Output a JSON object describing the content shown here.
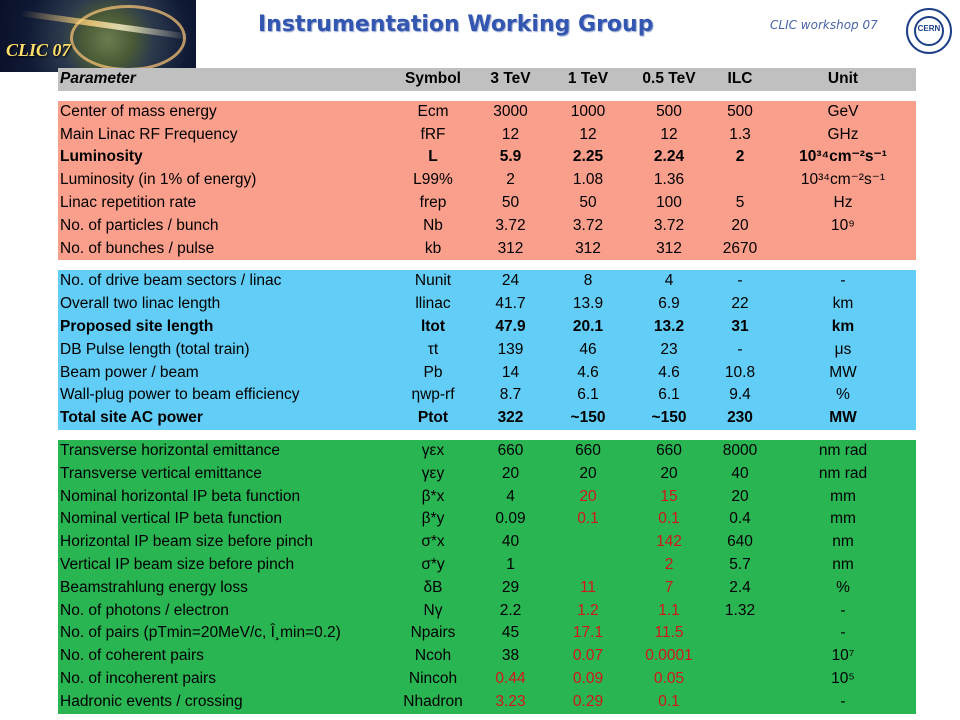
{
  "header": {
    "logo_text": "CLIC 07",
    "title": "Instrumentation Working Group",
    "workshop": "CLIC workshop 07",
    "cern_logo": "CERN"
  },
  "columns": [
    "Parameter",
    "Symbol",
    "3 TeV",
    "1 TeV",
    "0.5 TeV",
    "ILC",
    "Unit"
  ],
  "sections": [
    {
      "color": "#fa9f8c",
      "rows": [
        {
          "name": "Center of mass energy",
          "symbol": "Ecm",
          "v3": "3000",
          "v1": "1000",
          "v05": "500",
          "ilc": "500",
          "unit": "GeV"
        },
        {
          "name": "Main Linac RF Frequency",
          "symbol": "fRF",
          "v3": "12",
          "v1": "12",
          "v05": "12",
          "ilc": "1.3",
          "unit": "GHz"
        },
        {
          "name": "Luminosity",
          "symbol": "L",
          "v3": "5.9",
          "v1": "2.25",
          "v05": "2.24",
          "ilc": "2",
          "unit": "10³⁴cm⁻²s⁻¹",
          "bold": true
        },
        {
          "name": "Luminosity (in 1% of energy)",
          "symbol": "L99%",
          "v3": "2",
          "v1": "1.08",
          "v05": "1.36",
          "ilc": "",
          "unit": "10³⁴cm⁻²s⁻¹"
        },
        {
          "name": "Linac repetition rate",
          "symbol": "frep",
          "v3": "50",
          "v1": "50",
          "v05": "100",
          "ilc": "5",
          "unit": "Hz"
        },
        {
          "name": "No. of particles / bunch",
          "symbol": "Nb",
          "v3": "3.72",
          "v1": "3.72",
          "v05": "3.72",
          "ilc": "20",
          "unit": "10⁹"
        },
        {
          "name": "No. of bunches / pulse",
          "symbol": "kb",
          "v3": "312",
          "v1": "312",
          "v05": "312",
          "ilc": "2670",
          "unit": ""
        }
      ]
    },
    {
      "color": "#62cdf6",
      "rows": [
        {
          "name": "No. of drive beam sectors / linac",
          "symbol": "Nunit",
          "v3": "24",
          "v1": "8",
          "v05": "4",
          "ilc": "-",
          "unit": "-"
        },
        {
          "name": "Overall two linac length",
          "symbol": "llinac",
          "v3": "41.7",
          "v1": "13.9",
          "v05": "6.9",
          "ilc": "22",
          "unit": "km"
        },
        {
          "name": "Proposed site length",
          "symbol": "ltot",
          "v3": "47.9",
          "v1": "20.1",
          "v05": "13.2",
          "ilc": "31",
          "unit": "km",
          "bold": true
        },
        {
          "name": "DB Pulse length (total train)",
          "symbol": "τt",
          "v3": "139",
          "v1": "46",
          "v05": "23",
          "ilc": "-",
          "unit": "μs"
        },
        {
          "name": "Beam power / beam",
          "symbol": "Pb",
          "v3": "14",
          "v1": "4.6",
          "v05": "4.6",
          "ilc": "10.8",
          "unit": "MW"
        },
        {
          "name": "Wall-plug power to beam efficiency",
          "symbol": "ηwp-rf",
          "v3": "8.7",
          "v1": "6.1",
          "v05": "6.1",
          "ilc": "9.4",
          "unit": "%"
        },
        {
          "name": "Total site AC power",
          "symbol": "Ptot",
          "v3": "322",
          "v1": "~150",
          "v05": "~150",
          "ilc": "230",
          "unit": "MW",
          "bold": true
        }
      ]
    },
    {
      "color": "#2ab553",
      "rows": [
        {
          "name": "Transverse horizontal emittance",
          "symbol": "γεx",
          "v3": "660",
          "v1": "660",
          "v05": "660",
          "ilc": "8000",
          "unit": "nm rad"
        },
        {
          "name": "Transverse vertical emittance",
          "symbol": "γεy",
          "v3": "20",
          "v1": "20",
          "v05": "20",
          "ilc": "40",
          "unit": "nm rad"
        },
        {
          "name": "Nominal horizontal IP beta function",
          "symbol": "β*x",
          "v3": "4",
          "v1": "20",
          "v05": "15",
          "ilc": "20",
          "unit": "mm",
          "red": [
            "v1",
            "v05"
          ]
        },
        {
          "name": "Nominal vertical IP beta function",
          "symbol": "β*y",
          "v3": "0.09",
          "v1": "0.1",
          "v05": "0.1",
          "ilc": "0.4",
          "unit": "mm",
          "red": [
            "v1",
            "v05"
          ]
        },
        {
          "name": "Horizontal IP beam size before pinch",
          "symbol": "σ*x",
          "v3": "40",
          "v1": "",
          "v05": "142",
          "ilc": "640",
          "unit": "nm",
          "red": [
            "v05"
          ]
        },
        {
          "name": "Vertical IP beam size before pinch",
          "symbol": "σ*y",
          "v3": "1",
          "v1": "",
          "v05": "2",
          "ilc": "5.7",
          "unit": "nm",
          "red": [
            "v05"
          ]
        },
        {
          "name": "Beamstrahlung energy loss",
          "symbol": "δB",
          "v3": "29",
          "v1": "11",
          "v05": "7",
          "ilc": "2.4",
          "unit": "%",
          "red": [
            "v1",
            "v05"
          ]
        },
        {
          "name": "No. of photons / electron",
          "symbol": "Nγ",
          "v3": "2.2",
          "v1": "1.2",
          "v05": "1.1",
          "ilc": "1.32",
          "unit": "-",
          "red": [
            "v1",
            "v05"
          ]
        },
        {
          "name": "No. of pairs (pTmin=20MeV/c, Î¸min=0.2)",
          "symbol": "Npairs",
          "v3": "45",
          "v1": "17.1",
          "v05": "11.5",
          "ilc": "",
          "unit": "-",
          "red": [
            "v1",
            "v05"
          ]
        },
        {
          "name": "No. of coherent pairs",
          "symbol": "Ncoh",
          "v3": "38",
          "v1": "0.07",
          "v05": "0.0001",
          "ilc": "",
          "unit": "10⁷",
          "red": [
            "v1",
            "v05"
          ]
        },
        {
          "name": "No. of incoherent pairs",
          "symbol": "Nincoh",
          "v3": "0.44",
          "v1": "0.09",
          "v05": "0.05",
          "ilc": "",
          "unit": "10⁵",
          "red": [
            "v3",
            "v1",
            "v05"
          ]
        },
        {
          "name": "Hadronic events / crossing",
          "symbol": "Nhadron",
          "v3": "3.23",
          "v1": "0.29",
          "v05": "0.1",
          "ilc": "",
          "unit": "-",
          "red": [
            "v3",
            "v1",
            "v05"
          ]
        }
      ]
    }
  ]
}
